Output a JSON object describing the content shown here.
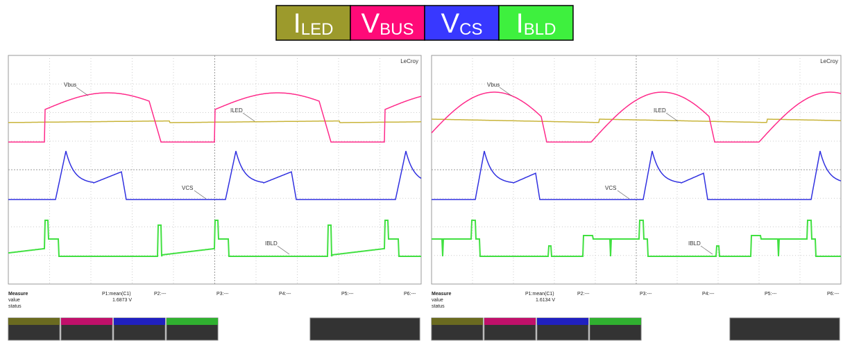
{
  "legend": [
    {
      "main": "I",
      "sub": "LED",
      "color": "#9c9a2c"
    },
    {
      "main": "V",
      "sub": "BUS",
      "color": "#ff0a78"
    },
    {
      "main": "V",
      "sub": "CS",
      "color": "#3838ff"
    },
    {
      "main": "I",
      "sub": "BLD",
      "color": "#3ef03e"
    }
  ],
  "scopes": [
    {
      "brand": "LeCroy",
      "labels": [
        "Vbus",
        "ILED",
        "VCS",
        "IBLD"
      ],
      "measure": {
        "title": "Measure",
        "rows": [
          "value",
          "status"
        ],
        "p1": "P1:mean(C1)",
        "p1_value": "1.6873 V",
        "others": [
          "P2:---",
          "P3:---",
          "P4:---",
          "P5:---",
          "P6:---"
        ]
      }
    },
    {
      "brand": "LeCroy",
      "labels": [
        "Vbus",
        "ILED",
        "VCS",
        "IBLD"
      ],
      "measure": {
        "title": "Measure",
        "rows": [
          "value",
          "status"
        ],
        "p1": "P1:mean(C1)",
        "p1_value": "1.6134 V",
        "others": [
          "P2:---",
          "P3:---",
          "P4:---",
          "P5:---",
          "P6:---"
        ]
      }
    }
  ]
}
